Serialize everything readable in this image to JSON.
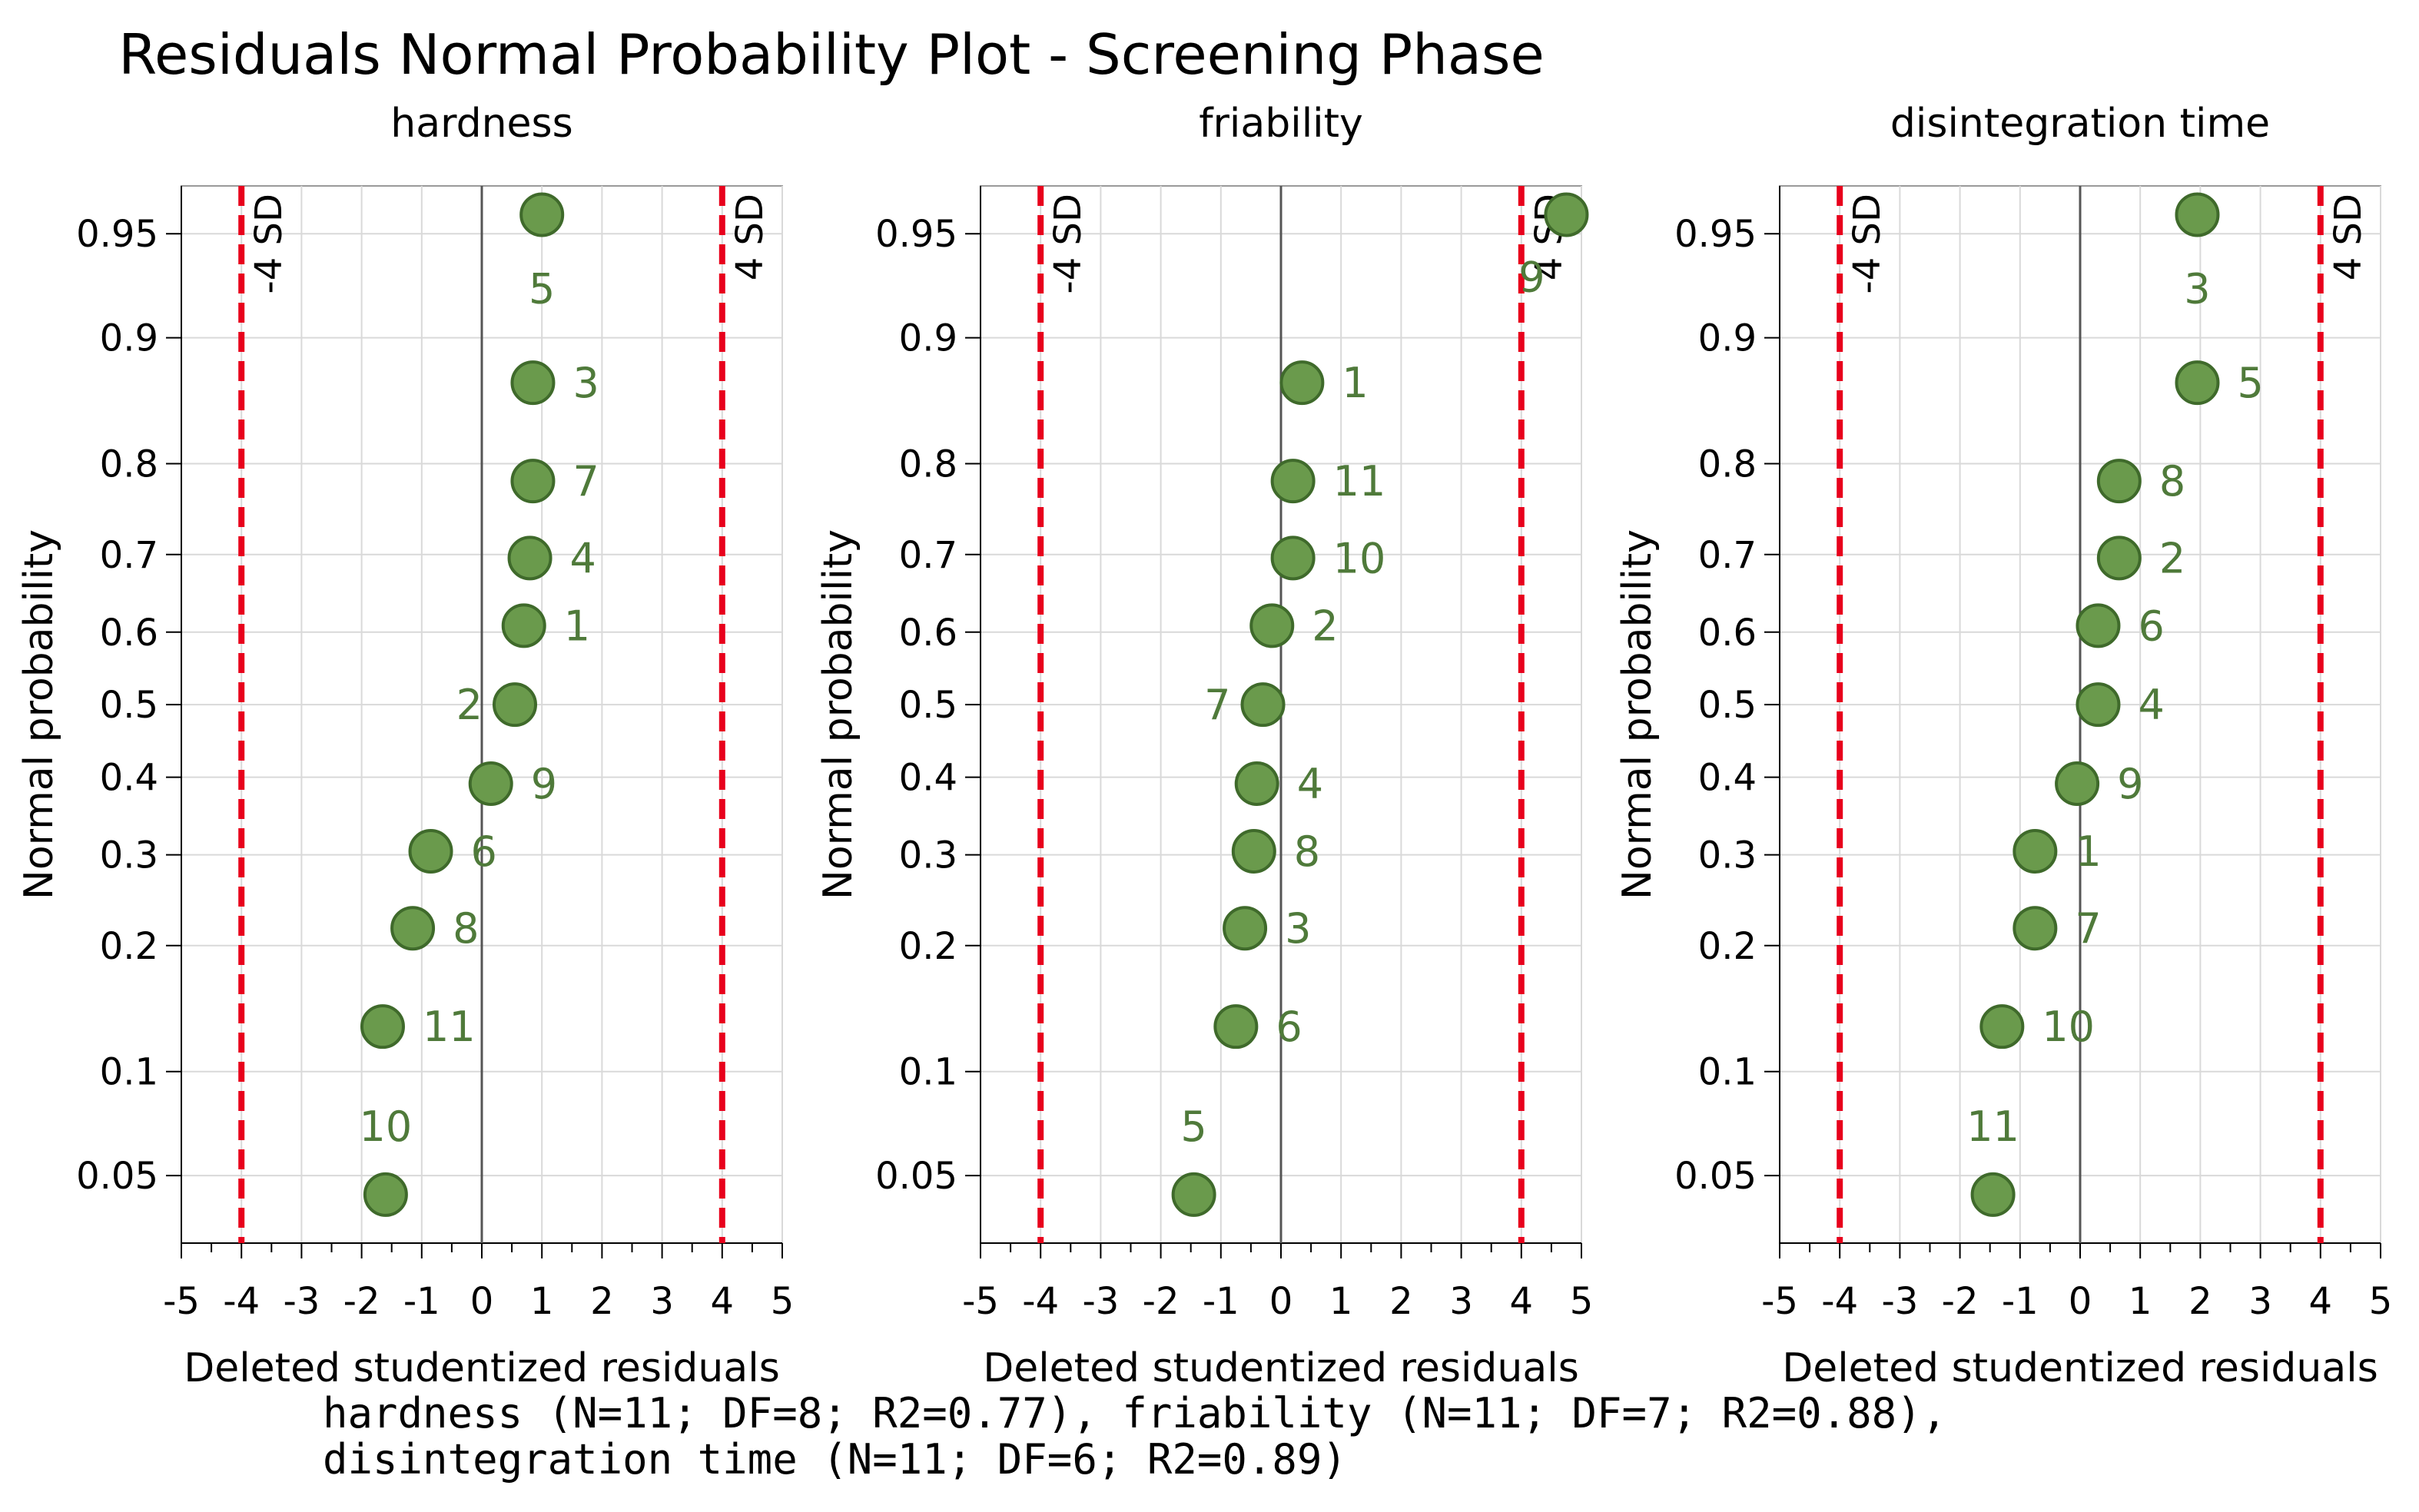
{
  "chart_data": {
    "type": "scatter",
    "title": "Residuals Normal Probability Plot - Screening Phase",
    "xlabel": "Deleted studentized residuals",
    "ylabel": "Normal probability",
    "xlim": [
      -5,
      5
    ],
    "x_ticks": [
      "-5",
      "-4",
      "-3",
      "-2",
      "-1",
      "0",
      "1",
      "2",
      "3",
      "4",
      "5"
    ],
    "y_ticks": [
      "0.05",
      "0.1",
      "0.2",
      "0.3",
      "0.4",
      "0.5",
      "0.6",
      "0.7",
      "0.8",
      "0.9",
      "0.95"
    ],
    "sd_lines": [
      {
        "x": -4,
        "label": "-4 SD"
      },
      {
        "x": 4,
        "label": "4 SD"
      }
    ],
    "colors": {
      "point_fill": "#6a9a4c",
      "point_stroke": "#3f6a2b",
      "label": "#4f7a3a",
      "sd_line": "#e8001c",
      "grid": "#d9d9d9",
      "zero_line": "#555555"
    },
    "panels": [
      {
        "name": "hardness",
        "points": [
          {
            "label": "5",
            "x": 1.0,
            "p": 0.9565,
            "label_side": "below"
          },
          {
            "label": "3",
            "x": 0.85,
            "p": 0.8696,
            "label_side": "right"
          },
          {
            "label": "7",
            "x": 0.85,
            "p": 0.7826,
            "label_side": "right"
          },
          {
            "label": "4",
            "x": 0.8,
            "p": 0.6957,
            "label_side": "right"
          },
          {
            "label": "1",
            "x": 0.7,
            "p": 0.6087,
            "label_side": "right"
          },
          {
            "label": "2",
            "x": 0.55,
            "p": 0.5,
            "label_side": "left"
          },
          {
            "label": "9",
            "x": 0.15,
            "p": 0.3913,
            "label_side": "right"
          },
          {
            "label": "6",
            "x": -0.85,
            "p": 0.3043,
            "label_side": "right"
          },
          {
            "label": "8",
            "x": -1.15,
            "p": 0.2174,
            "label_side": "right"
          },
          {
            "label": "11",
            "x": -1.65,
            "p": 0.1304,
            "label_side": "right"
          },
          {
            "label": "10",
            "x": -1.6,
            "p": 0.0435,
            "label_side": "above"
          }
        ]
      },
      {
        "name": "friability",
        "points": [
          {
            "label": "9",
            "x": 4.75,
            "p": 0.9565,
            "label_side": "belowleft"
          },
          {
            "label": "1",
            "x": 0.35,
            "p": 0.8696,
            "label_side": "right"
          },
          {
            "label": "11",
            "x": 0.2,
            "p": 0.7826,
            "label_side": "right"
          },
          {
            "label": "10",
            "x": 0.2,
            "p": 0.6957,
            "label_side": "right"
          },
          {
            "label": "2",
            "x": -0.15,
            "p": 0.6087,
            "label_side": "right"
          },
          {
            "label": "7",
            "x": -0.3,
            "p": 0.5,
            "label_side": "left"
          },
          {
            "label": "4",
            "x": -0.4,
            "p": 0.3913,
            "label_side": "right"
          },
          {
            "label": "8",
            "x": -0.45,
            "p": 0.3043,
            "label_side": "right"
          },
          {
            "label": "3",
            "x": -0.6,
            "p": 0.2174,
            "label_side": "right"
          },
          {
            "label": "6",
            "x": -0.75,
            "p": 0.1304,
            "label_side": "right"
          },
          {
            "label": "5",
            "x": -1.45,
            "p": 0.0435,
            "label_side": "above"
          }
        ]
      },
      {
        "name": "disintegration time",
        "points": [
          {
            "label": "3",
            "x": 1.95,
            "p": 0.9565,
            "label_side": "below"
          },
          {
            "label": "5",
            "x": 1.95,
            "p": 0.8696,
            "label_side": "right"
          },
          {
            "label": "8",
            "x": 0.65,
            "p": 0.7826,
            "label_side": "right"
          },
          {
            "label": "2",
            "x": 0.65,
            "p": 0.6957,
            "label_side": "right"
          },
          {
            "label": "6",
            "x": 0.3,
            "p": 0.6087,
            "label_side": "right"
          },
          {
            "label": "4",
            "x": 0.3,
            "p": 0.5,
            "label_side": "right"
          },
          {
            "label": "9",
            "x": -0.05,
            "p": 0.3913,
            "label_side": "right"
          },
          {
            "label": "1",
            "x": -0.75,
            "p": 0.3043,
            "label_side": "right"
          },
          {
            "label": "7",
            "x": -0.75,
            "p": 0.2174,
            "label_side": "right"
          },
          {
            "label": "10",
            "x": -1.3,
            "p": 0.1304,
            "label_side": "right"
          },
          {
            "label": "11",
            "x": -1.45,
            "p": 0.0435,
            "label_side": "above"
          }
        ]
      }
    ],
    "footnote": [
      "hardness (N=11; DF=8; R2=0.77), friability (N=11; DF=7; R2=0.88),",
      "disintegration time (N=11; DF=6; R2=0.89)"
    ]
  }
}
